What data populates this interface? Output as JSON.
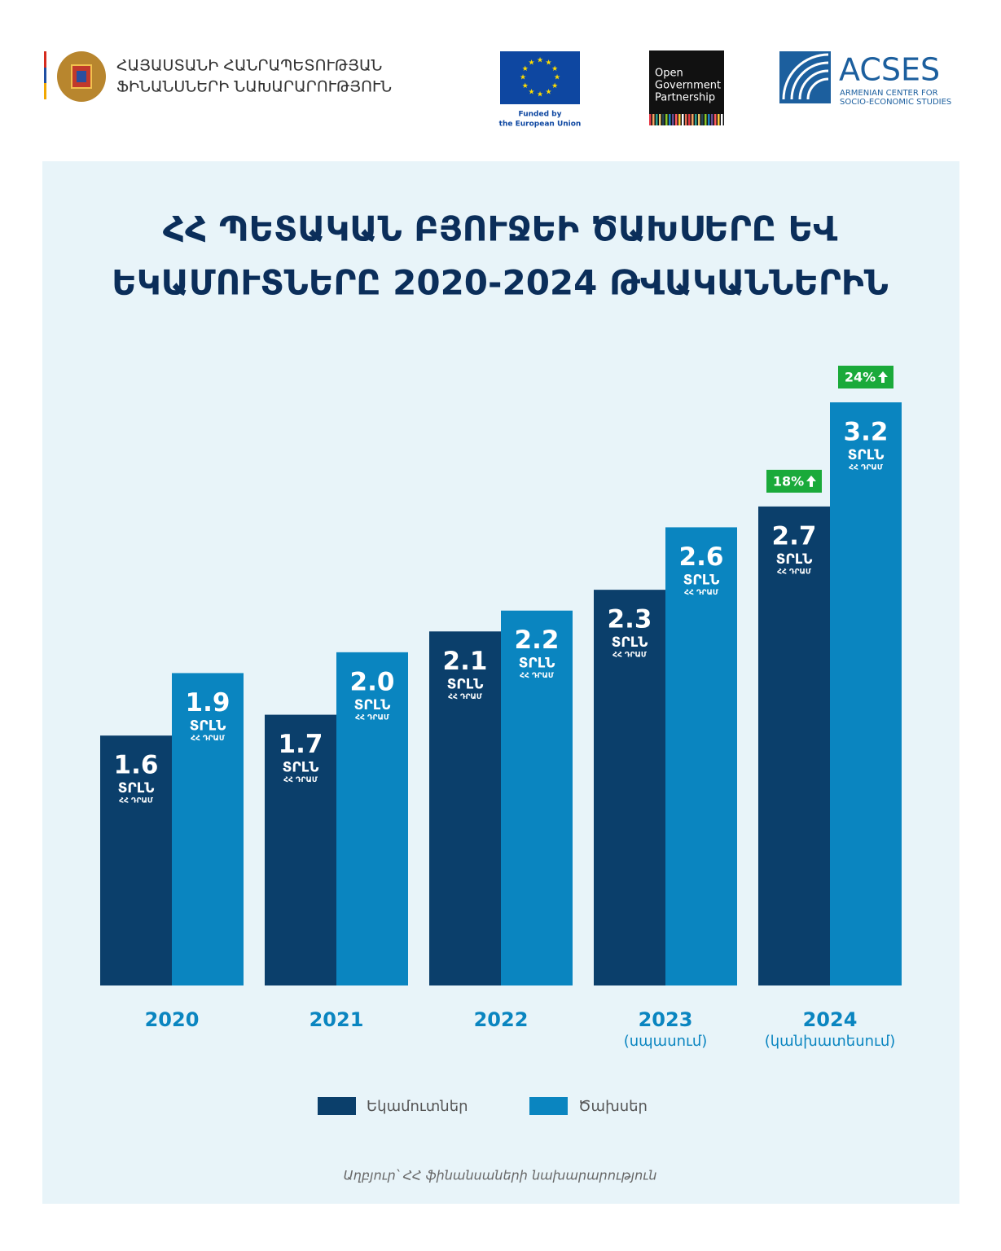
{
  "header": {
    "ministry": [
      "ՀԱՅԱՍՏԱՆԻ ՀԱՆՐԱՊԵՏՈՒԹՅԱՆ",
      "ՖԻՆԱՆՍՆԵՐԻ ՆԱԽԱՐԱՐՈՒԹՅՈՒՆ"
    ],
    "eu": [
      "Funded by",
      "the European Union"
    ],
    "ogp": [
      "Open",
      "Government",
      "Partnership"
    ],
    "acses": {
      "name": "ACSES",
      "sub": [
        "ARMENIAN CENTER FOR",
        "SOCIO-ECONOMIC STUDIES"
      ]
    }
  },
  "chart_data": {
    "type": "bar",
    "title": [
      "ՀՀ ՊԵՏԱԿԱՆ ԲՅՈՒՋԵԻ ԾԱԽՍԵՐԸ ԵՎ",
      "ԵԿԱՄՈՒՏՆԵՐԸ 2020-2024 ԹՎԱԿԱՆՆԵՐԻՆ"
    ],
    "categories": [
      "2020",
      "2021",
      "2022",
      "2023",
      "2024"
    ],
    "category_notes": [
      null,
      null,
      null,
      "(սպասում)",
      "(կանխատեսում)"
    ],
    "unit": "ՏՐԼՆ",
    "unit_sub": "ՀՀ ԴՐԱՄ",
    "ylim": [
      0.4,
      3.2
    ],
    "series": [
      {
        "name": "Եկամուտներ",
        "color": "#0b3f6b",
        "values": [
          1.6,
          1.7,
          2.1,
          2.3,
          2.7
        ],
        "value_labels": [
          "1.6",
          "1.7",
          "2.1",
          "2.3",
          "2.7"
        ],
        "growth": [
          null,
          null,
          null,
          null,
          18
        ],
        "growth_labels": [
          null,
          null,
          null,
          null,
          "18%"
        ]
      },
      {
        "name": "Ծախսեր",
        "color": "#0a85c0",
        "values": [
          1.9,
          2.0,
          2.2,
          2.6,
          3.2
        ],
        "value_labels": [
          "1.9",
          "2.0",
          "2.2",
          "2.6",
          "3.2"
        ],
        "growth": [
          null,
          null,
          null,
          null,
          24
        ],
        "growth_labels": [
          null,
          null,
          null,
          null,
          "24%"
        ]
      }
    ],
    "growth_color": "#1aaa3a",
    "source": "Աղբյուր՝ ՀՀ ֆինանսաների նախարարություն"
  }
}
